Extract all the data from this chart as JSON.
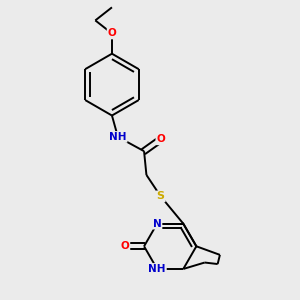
{
  "bg_color": "#ebebeb",
  "atom_colors": {
    "C": "#000000",
    "N": "#0000cc",
    "O": "#ff0000",
    "S": "#ccaa00",
    "H": "#000000"
  },
  "bond_color": "#000000",
  "figsize": [
    3.0,
    3.0
  ],
  "dpi": 100
}
